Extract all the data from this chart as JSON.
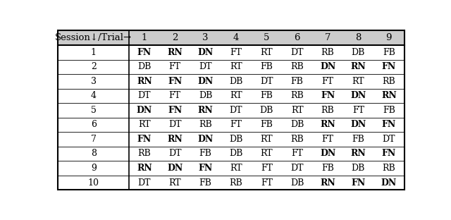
{
  "header_col": "Session↓/Trial→",
  "header_trials": [
    "1",
    "2",
    "3",
    "4",
    "5",
    "6",
    "7",
    "8",
    "9"
  ],
  "sessions": [
    "1",
    "2",
    "3",
    "4",
    "5",
    "6",
    "7",
    "8",
    "9",
    "10"
  ],
  "table_data": [
    [
      "FN",
      "RN",
      "DN",
      "FT",
      "RT",
      "DT",
      "RB",
      "DB",
      "FB"
    ],
    [
      "DB",
      "FT",
      "DT",
      "RT",
      "FB",
      "RB",
      "DN",
      "RN",
      "FN"
    ],
    [
      "RN",
      "FN",
      "DN",
      "DB",
      "DT",
      "FB",
      "FT",
      "RT",
      "RB"
    ],
    [
      "DT",
      "FT",
      "DB",
      "RT",
      "FB",
      "RB",
      "FN",
      "DN",
      "RN"
    ],
    [
      "DN",
      "FN",
      "RN",
      "DT",
      "DB",
      "RT",
      "RB",
      "FT",
      "FB"
    ],
    [
      "RT",
      "DT",
      "RB",
      "FT",
      "FB",
      "DB",
      "RN",
      "DN",
      "FN"
    ],
    [
      "FN",
      "RN",
      "DN",
      "DB",
      "RT",
      "RB",
      "FT",
      "FB",
      "DT"
    ],
    [
      "RB",
      "DT",
      "FB",
      "DB",
      "RT",
      "FT",
      "DN",
      "RN",
      "FN"
    ],
    [
      "RN",
      "DN",
      "FN",
      "RT",
      "FT",
      "DT",
      "FB",
      "DB",
      "RB"
    ],
    [
      "DT",
      "RT",
      "FB",
      "RB",
      "FT",
      "DB",
      "RN",
      "FN",
      "DN"
    ]
  ],
  "bold_cells": [
    [
      [
        0,
        0
      ],
      [
        0,
        1
      ],
      [
        0,
        2
      ]
    ],
    [
      [
        1,
        6
      ],
      [
        1,
        7
      ],
      [
        1,
        8
      ]
    ],
    [
      [
        2,
        0
      ],
      [
        2,
        1
      ],
      [
        2,
        2
      ]
    ],
    [
      [
        3,
        6
      ],
      [
        3,
        7
      ],
      [
        3,
        8
      ]
    ],
    [
      [
        4,
        0
      ],
      [
        4,
        1
      ],
      [
        4,
        2
      ]
    ],
    [
      [
        5,
        6
      ],
      [
        5,
        7
      ],
      [
        5,
        8
      ]
    ],
    [
      [
        6,
        0
      ],
      [
        6,
        1
      ],
      [
        6,
        2
      ]
    ],
    [
      [
        7,
        6
      ],
      [
        7,
        7
      ],
      [
        7,
        8
      ]
    ],
    [
      [
        8,
        0
      ],
      [
        8,
        1
      ],
      [
        8,
        2
      ]
    ],
    [
      [
        9,
        6
      ],
      [
        9,
        7
      ],
      [
        9,
        8
      ]
    ]
  ],
  "bg_color": "#ffffff",
  "header_bg": "#cccccc",
  "figsize": [
    6.4,
    3.12
  ],
  "dpi": 100
}
